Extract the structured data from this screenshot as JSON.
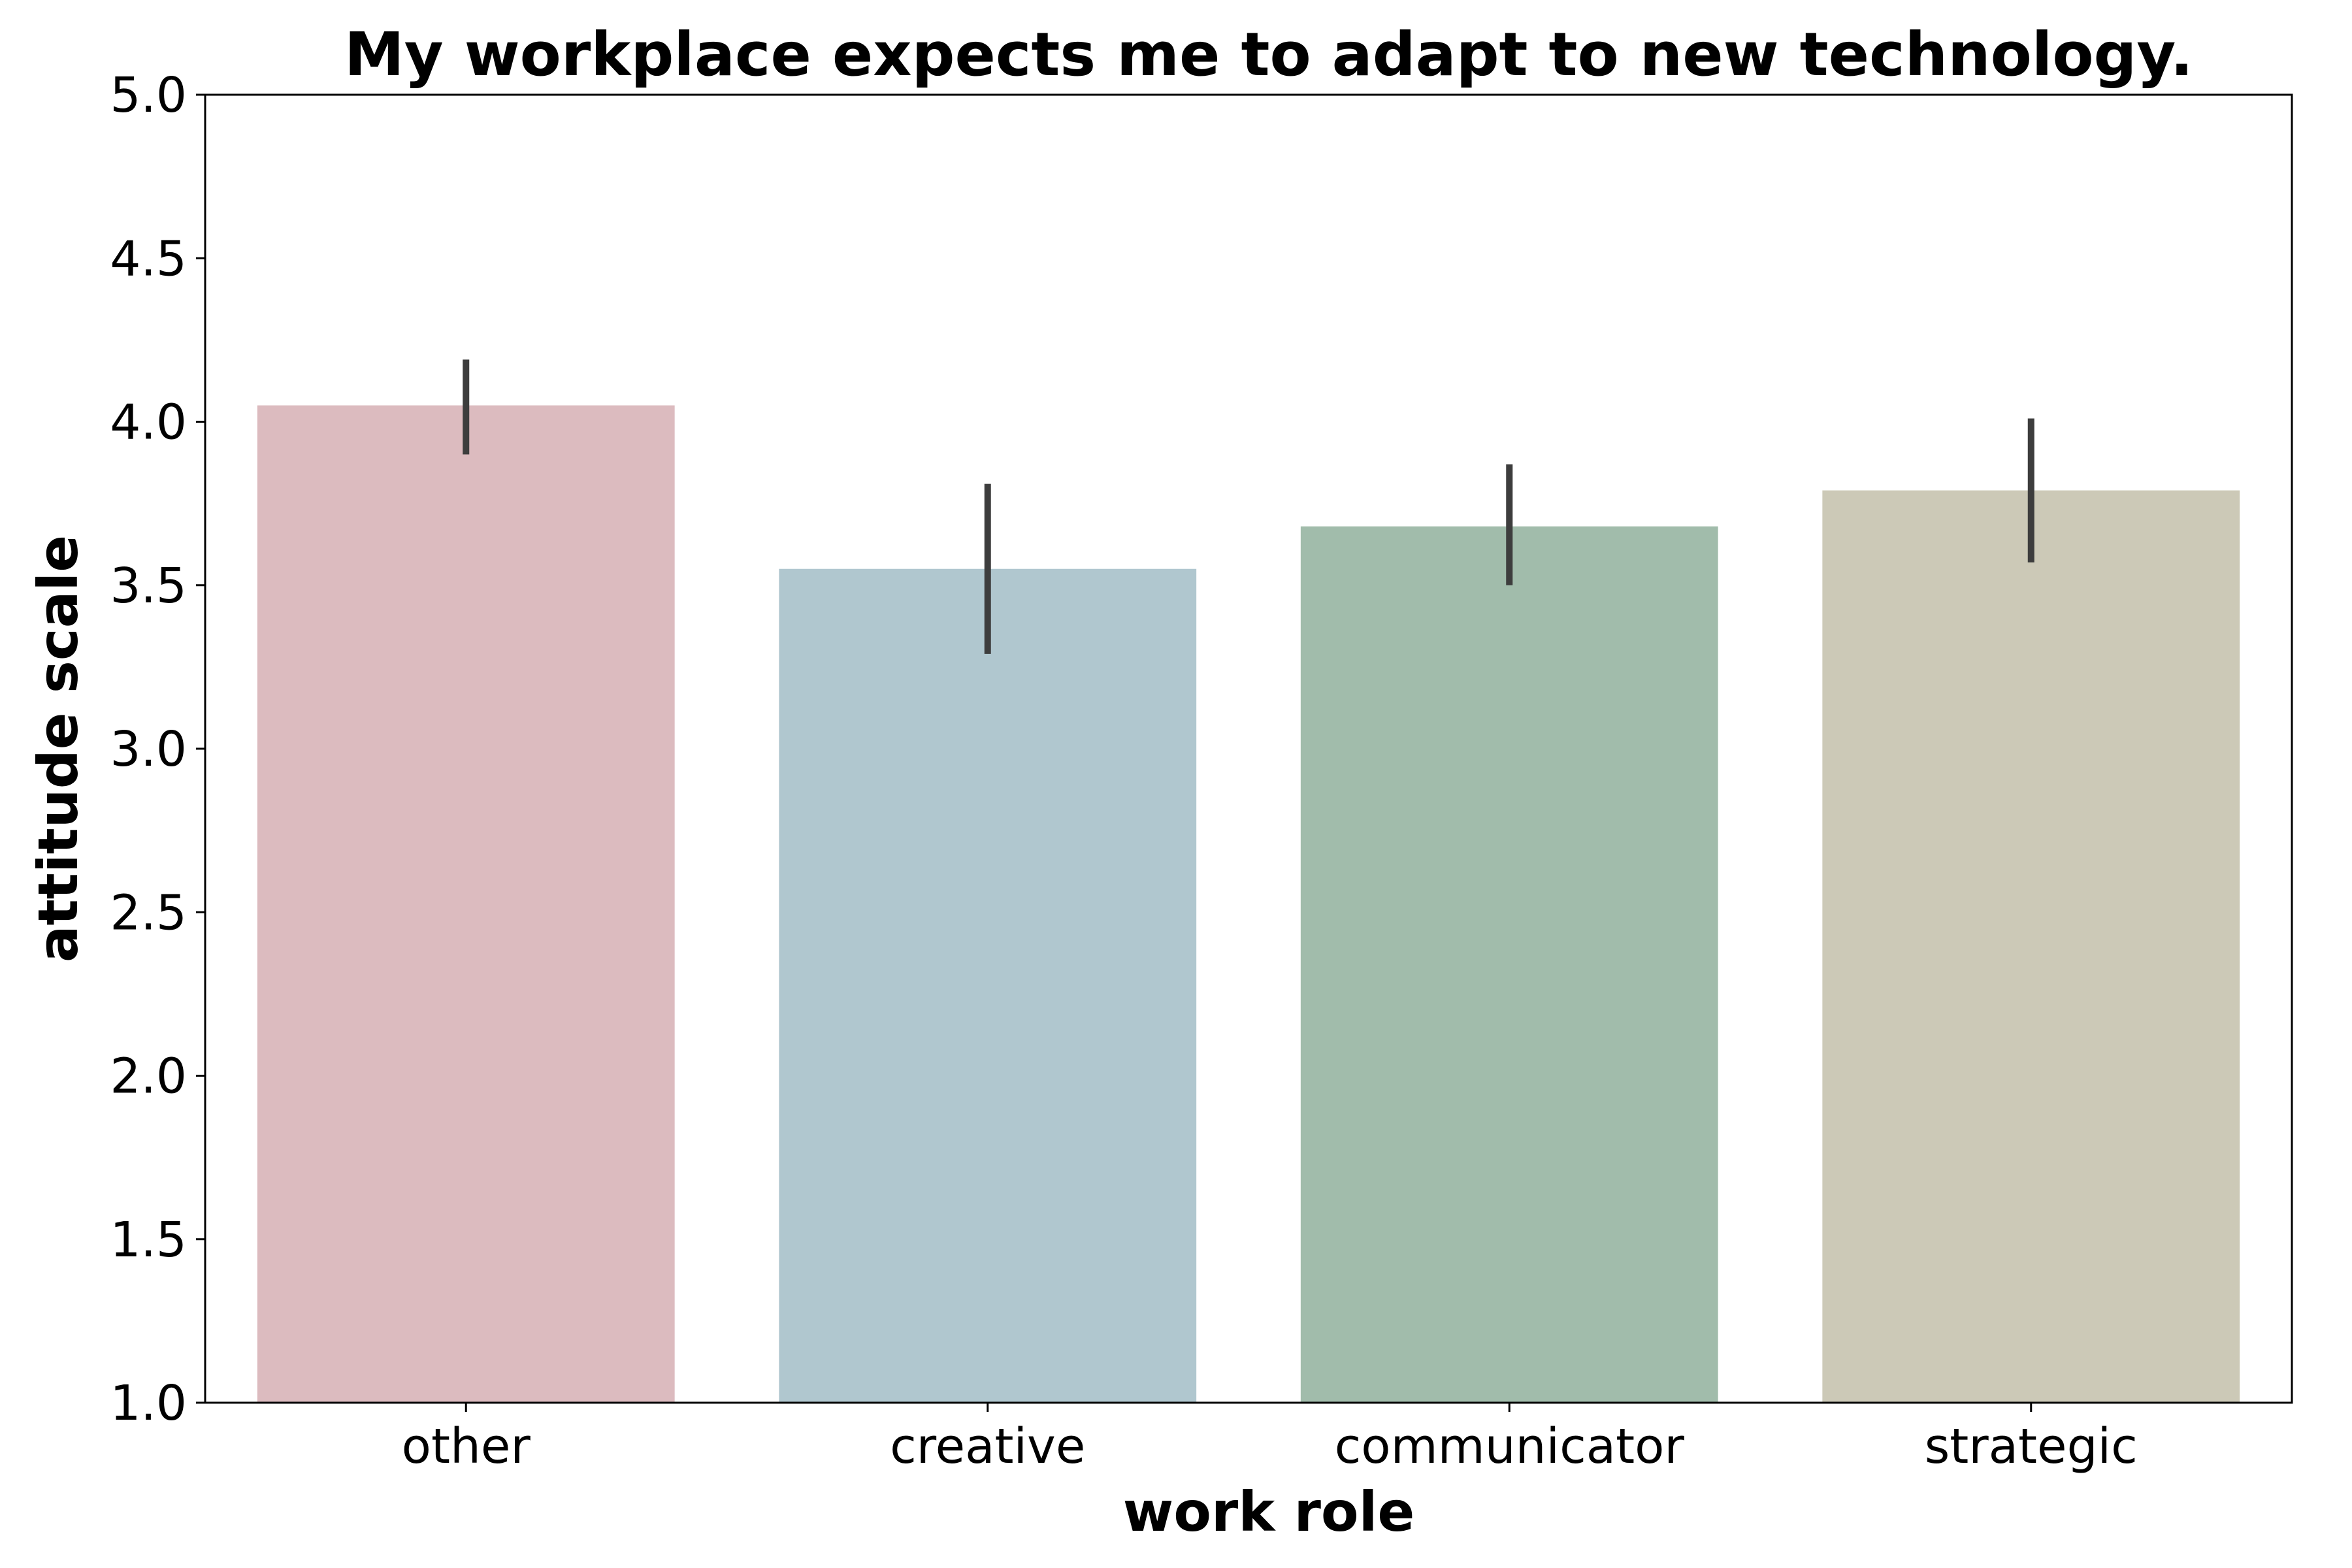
{
  "chart_data": {
    "type": "bar",
    "title": "My workplace expects me to adapt to new technology.",
    "xlabel": "work role",
    "ylabel": "attitude scale",
    "categories": [
      "other",
      "creative",
      "communicator",
      "strategic"
    ],
    "values": [
      4.05,
      3.55,
      3.68,
      3.79
    ],
    "error_low": [
      3.9,
      3.29,
      3.5,
      3.57
    ],
    "error_high": [
      4.19,
      3.81,
      3.87,
      4.01
    ],
    "colors": [
      "#dcbbbf",
      "#b0c7cf",
      "#a1bcab",
      "#ccc9b7"
    ],
    "error_color": "#3d3d3d",
    "ylim": [
      1.0,
      5.0
    ],
    "yticks": [
      "1.0",
      "1.5",
      "2.0",
      "2.5",
      "3.0",
      "3.5",
      "4.0",
      "4.5",
      "5.0"
    ],
    "grid": false,
    "legend": "none"
  }
}
